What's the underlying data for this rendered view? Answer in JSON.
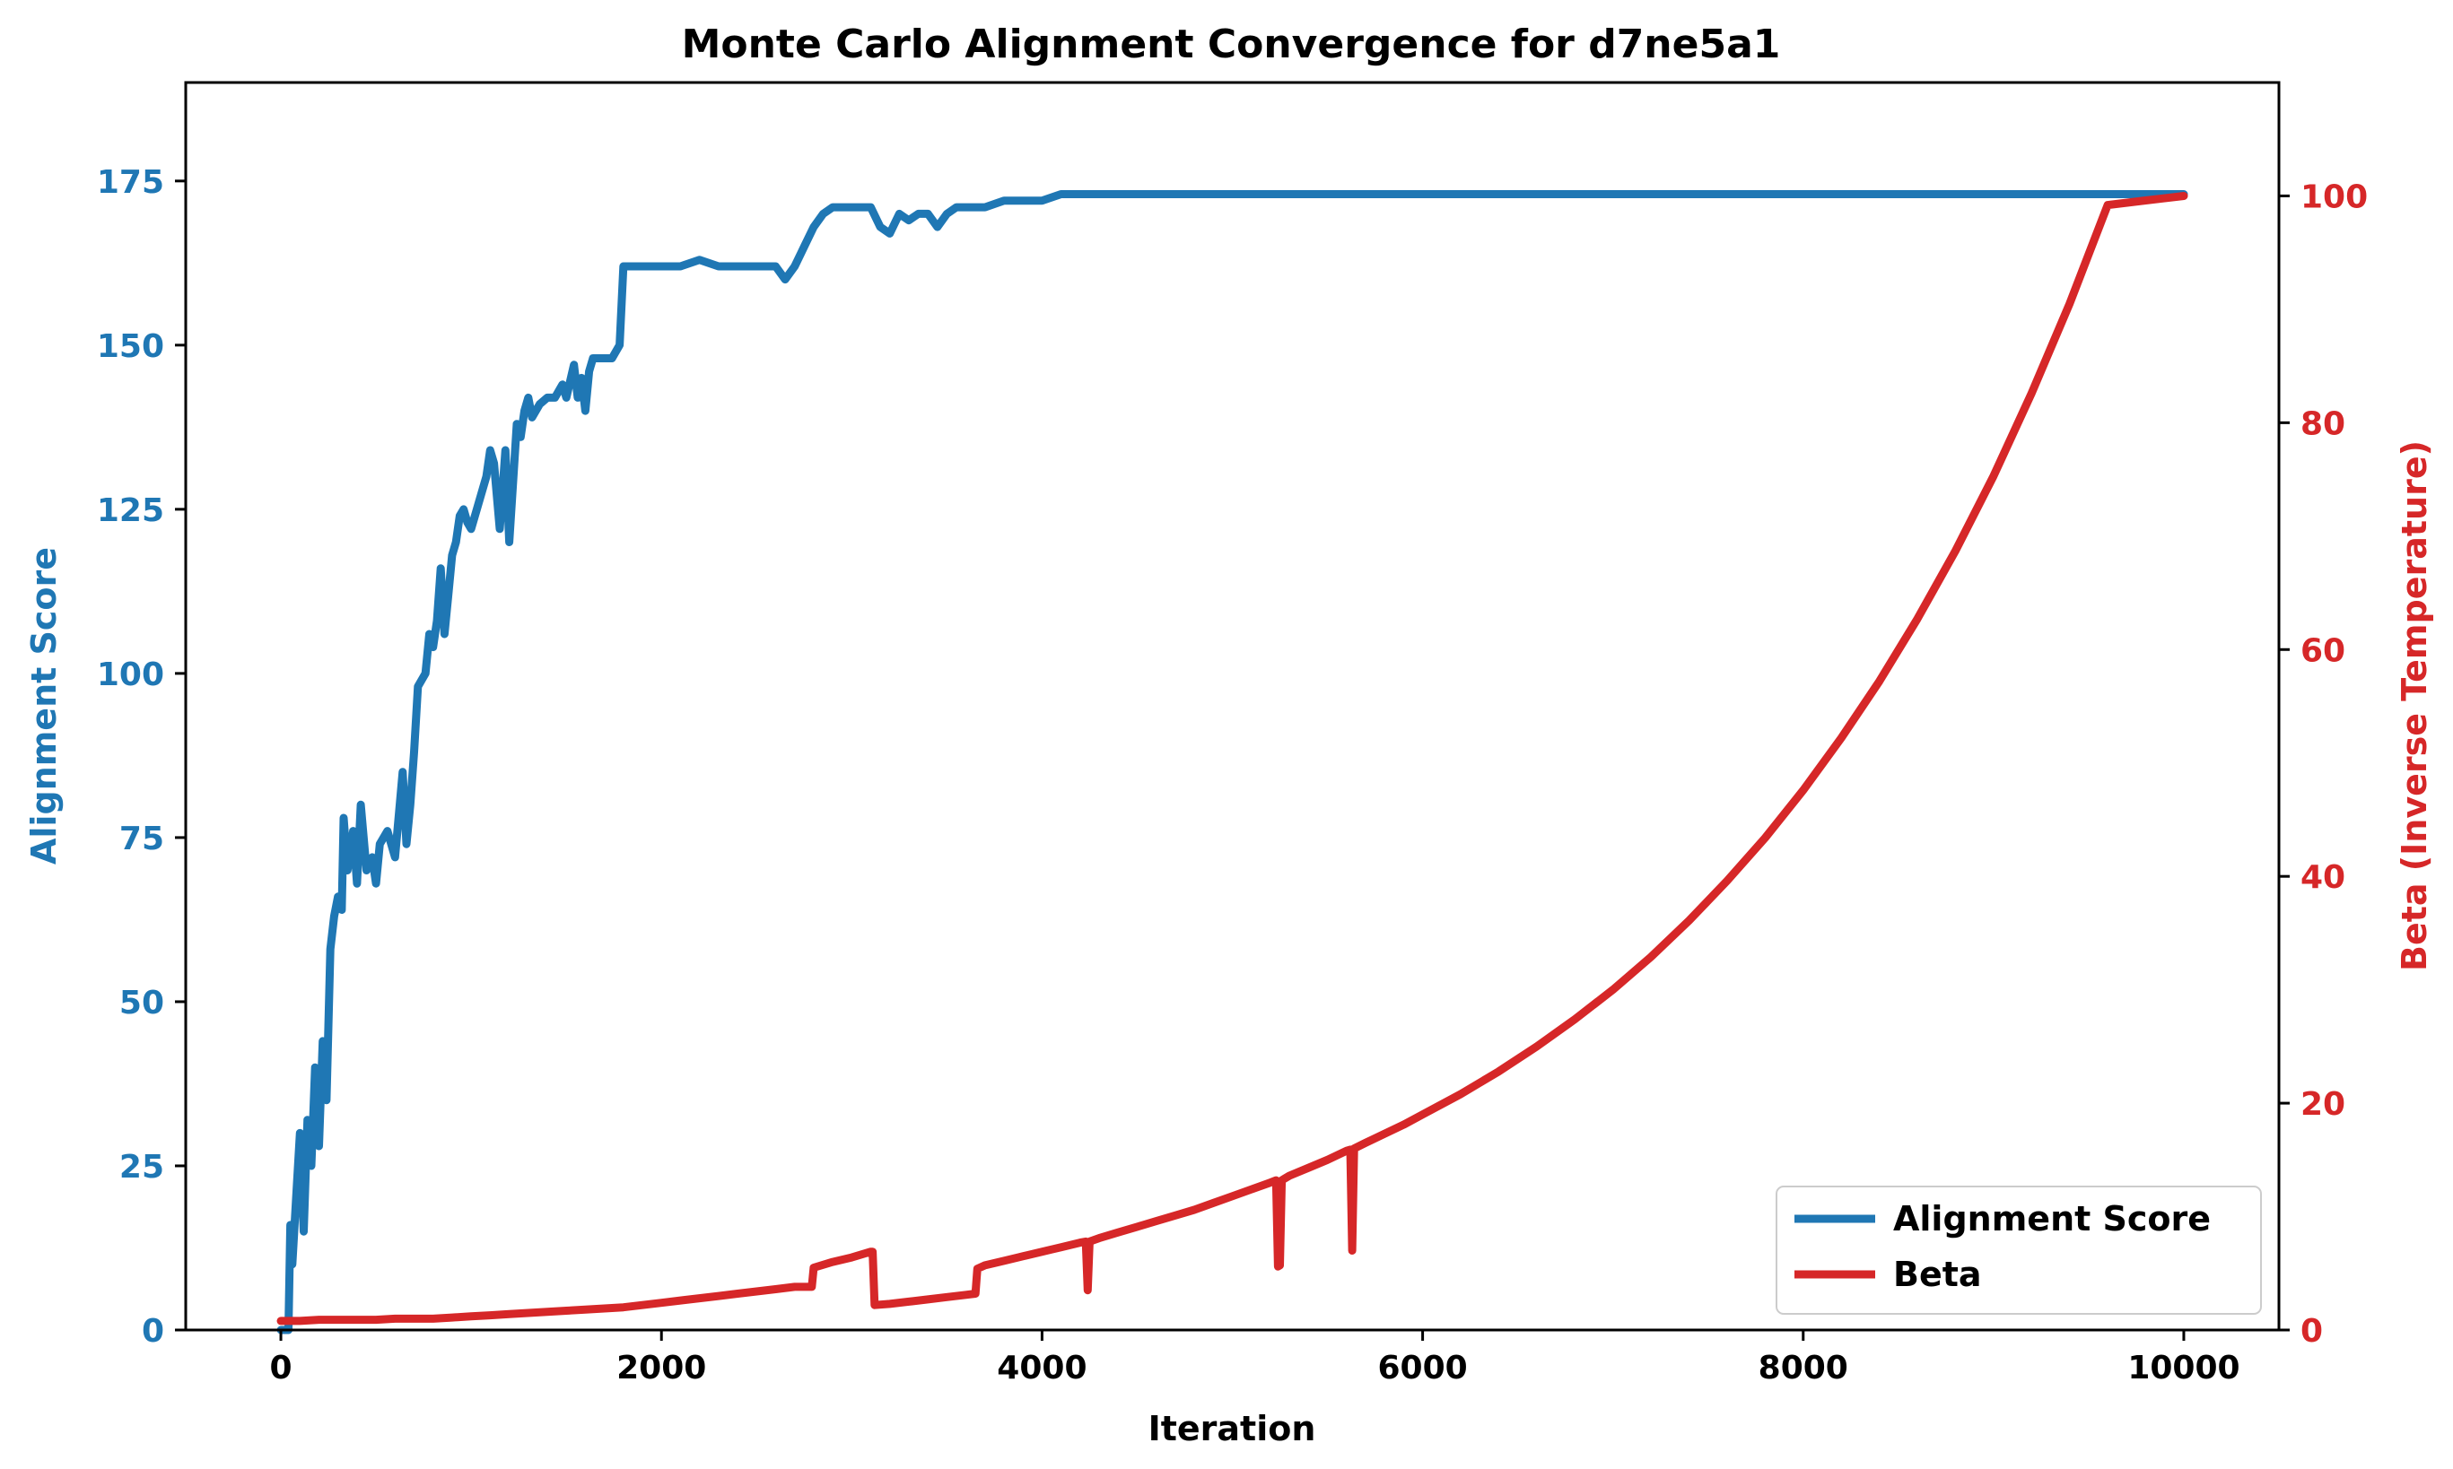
{
  "chart_data": {
    "type": "line",
    "title": "Monte Carlo Alignment Convergence for d7ne5a1",
    "xlabel": "Iteration",
    "ylabel_left": "Alignment Score",
    "ylabel_right": "Beta (Inverse Temperature)",
    "xlim": [
      -500,
      10500
    ],
    "ylim_left": [
      0,
      190
    ],
    "ylim_right": [
      0,
      110
    ],
    "x_ticks": [
      0,
      2000,
      4000,
      6000,
      8000,
      10000
    ],
    "y_left_ticks": [
      0,
      25,
      50,
      75,
      100,
      125,
      150,
      175
    ],
    "y_right_ticks": [
      0,
      20,
      40,
      60,
      80,
      100
    ],
    "grid": false,
    "legend_position": "lower-right",
    "colors": {
      "alignment": "#1f77b4",
      "beta": "#d62728",
      "axes": "#000000"
    },
    "series": [
      {
        "name": "Alignment Score",
        "axis": "left",
        "x": [
          0,
          40,
          50,
          60,
          80,
          100,
          120,
          140,
          160,
          180,
          200,
          220,
          240,
          260,
          280,
          300,
          320,
          330,
          350,
          380,
          400,
          420,
          450,
          480,
          500,
          520,
          560,
          600,
          640,
          660,
          680,
          700,
          720,
          760,
          780,
          800,
          820,
          840,
          860,
          880,
          900,
          920,
          940,
          960,
          980,
          1000,
          1040,
          1080,
          1100,
          1120,
          1150,
          1180,
          1200,
          1240,
          1260,
          1280,
          1300,
          1320,
          1360,
          1400,
          1440,
          1480,
          1500,
          1540,
          1560,
          1580,
          1600,
          1620,
          1640,
          1700,
          1740,
          1780,
          1800,
          1860,
          1900,
          2000,
          2100,
          2200,
          2300,
          2400,
          2500,
          2600,
          2650,
          2700,
          2750,
          2800,
          2850,
          2900,
          3000,
          3100,
          3150,
          3200,
          3250,
          3300,
          3350,
          3400,
          3450,
          3500,
          3550,
          3600,
          3700,
          3800,
          4000,
          4100,
          4200,
          5000,
          6000,
          7000,
          8000,
          9000,
          10000
        ],
        "values": [
          0,
          0,
          16,
          10,
          20,
          30,
          15,
          32,
          25,
          40,
          28,
          44,
          35,
          58,
          63,
          66,
          64,
          78,
          70,
          76,
          68,
          80,
          70,
          72,
          68,
          74,
          76,
          72,
          85,
          74,
          80,
          88,
          98,
          100,
          106,
          104,
          108,
          116,
          106,
          112,
          118,
          120,
          124,
          125,
          123,
          122,
          126,
          130,
          134,
          132,
          122,
          134,
          120,
          138,
          136,
          140,
          142,
          139,
          141,
          142,
          142,
          144,
          142,
          147,
          142,
          145,
          140,
          146,
          148,
          148,
          148,
          150,
          162,
          162,
          162,
          162,
          162,
          163,
          162,
          162,
          162,
          162,
          160,
          162,
          165,
          168,
          170,
          171,
          171,
          171,
          168,
          167,
          170,
          169,
          170,
          170,
          168,
          170,
          171,
          171,
          171,
          172,
          172,
          173,
          173,
          173,
          173,
          173,
          173,
          173,
          173
        ]
      },
      {
        "name": "Beta",
        "axis": "right",
        "x": [
          0,
          100,
          200,
          300,
          400,
          500,
          600,
          700,
          800,
          900,
          1000,
          1100,
          1200,
          1300,
          1400,
          1500,
          1600,
          1700,
          1800,
          1900,
          2000,
          2100,
          2200,
          2300,
          2400,
          2500,
          2600,
          2700,
          2790,
          2800,
          2900,
          3000,
          3100,
          3110,
          3120,
          3200,
          3300,
          3400,
          3500,
          3600,
          3650,
          3660,
          3700,
          3800,
          3900,
          4000,
          4100,
          4200,
          4230,
          4240,
          4250,
          4300,
          4400,
          4500,
          4600,
          4700,
          4800,
          4900,
          5000,
          5100,
          5200,
          5230,
          5240,
          5250,
          5260,
          5270,
          5300,
          5400,
          5500,
          5600,
          5620,
          5630,
          5640,
          5700,
          5800,
          5900,
          6000,
          6200,
          6400,
          6600,
          6800,
          7000,
          7200,
          7400,
          7600,
          7800,
          8000,
          8200,
          8400,
          8600,
          8800,
          9000,
          9200,
          9400,
          9600,
          9800,
          10000
        ],
        "values": [
          0.8,
          0.8,
          0.9,
          0.9,
          0.9,
          0.9,
          1.0,
          1.0,
          1.0,
          1.1,
          1.2,
          1.3,
          1.4,
          1.5,
          1.6,
          1.7,
          1.8,
          1.9,
          2.0,
          2.2,
          2.4,
          2.6,
          2.8,
          3.0,
          3.2,
          3.4,
          3.6,
          3.8,
          3.8,
          5.5,
          6.0,
          6.4,
          6.9,
          6.9,
          2.2,
          2.3,
          2.5,
          2.7,
          2.9,
          3.1,
          3.2,
          5.4,
          5.7,
          6.1,
          6.5,
          6.9,
          7.3,
          7.7,
          7.8,
          3.5,
          7.8,
          8.1,
          8.6,
          9.1,
          9.6,
          10.1,
          10.6,
          11.2,
          11.8,
          12.4,
          13.0,
          13.2,
          5.6,
          5.7,
          13.2,
          13.3,
          13.6,
          14.3,
          15.0,
          15.8,
          15.9,
          7.0,
          16.0,
          16.5,
          17.3,
          18.1,
          19.0,
          20.8,
          22.8,
          25.0,
          27.4,
          30.0,
          32.9,
          36.1,
          39.6,
          43.4,
          47.6,
          52.2,
          57.2,
          62.7,
          68.7,
          75.3,
          82.6,
          90.5,
          99.2,
          99.6,
          100.0
        ]
      }
    ]
  }
}
